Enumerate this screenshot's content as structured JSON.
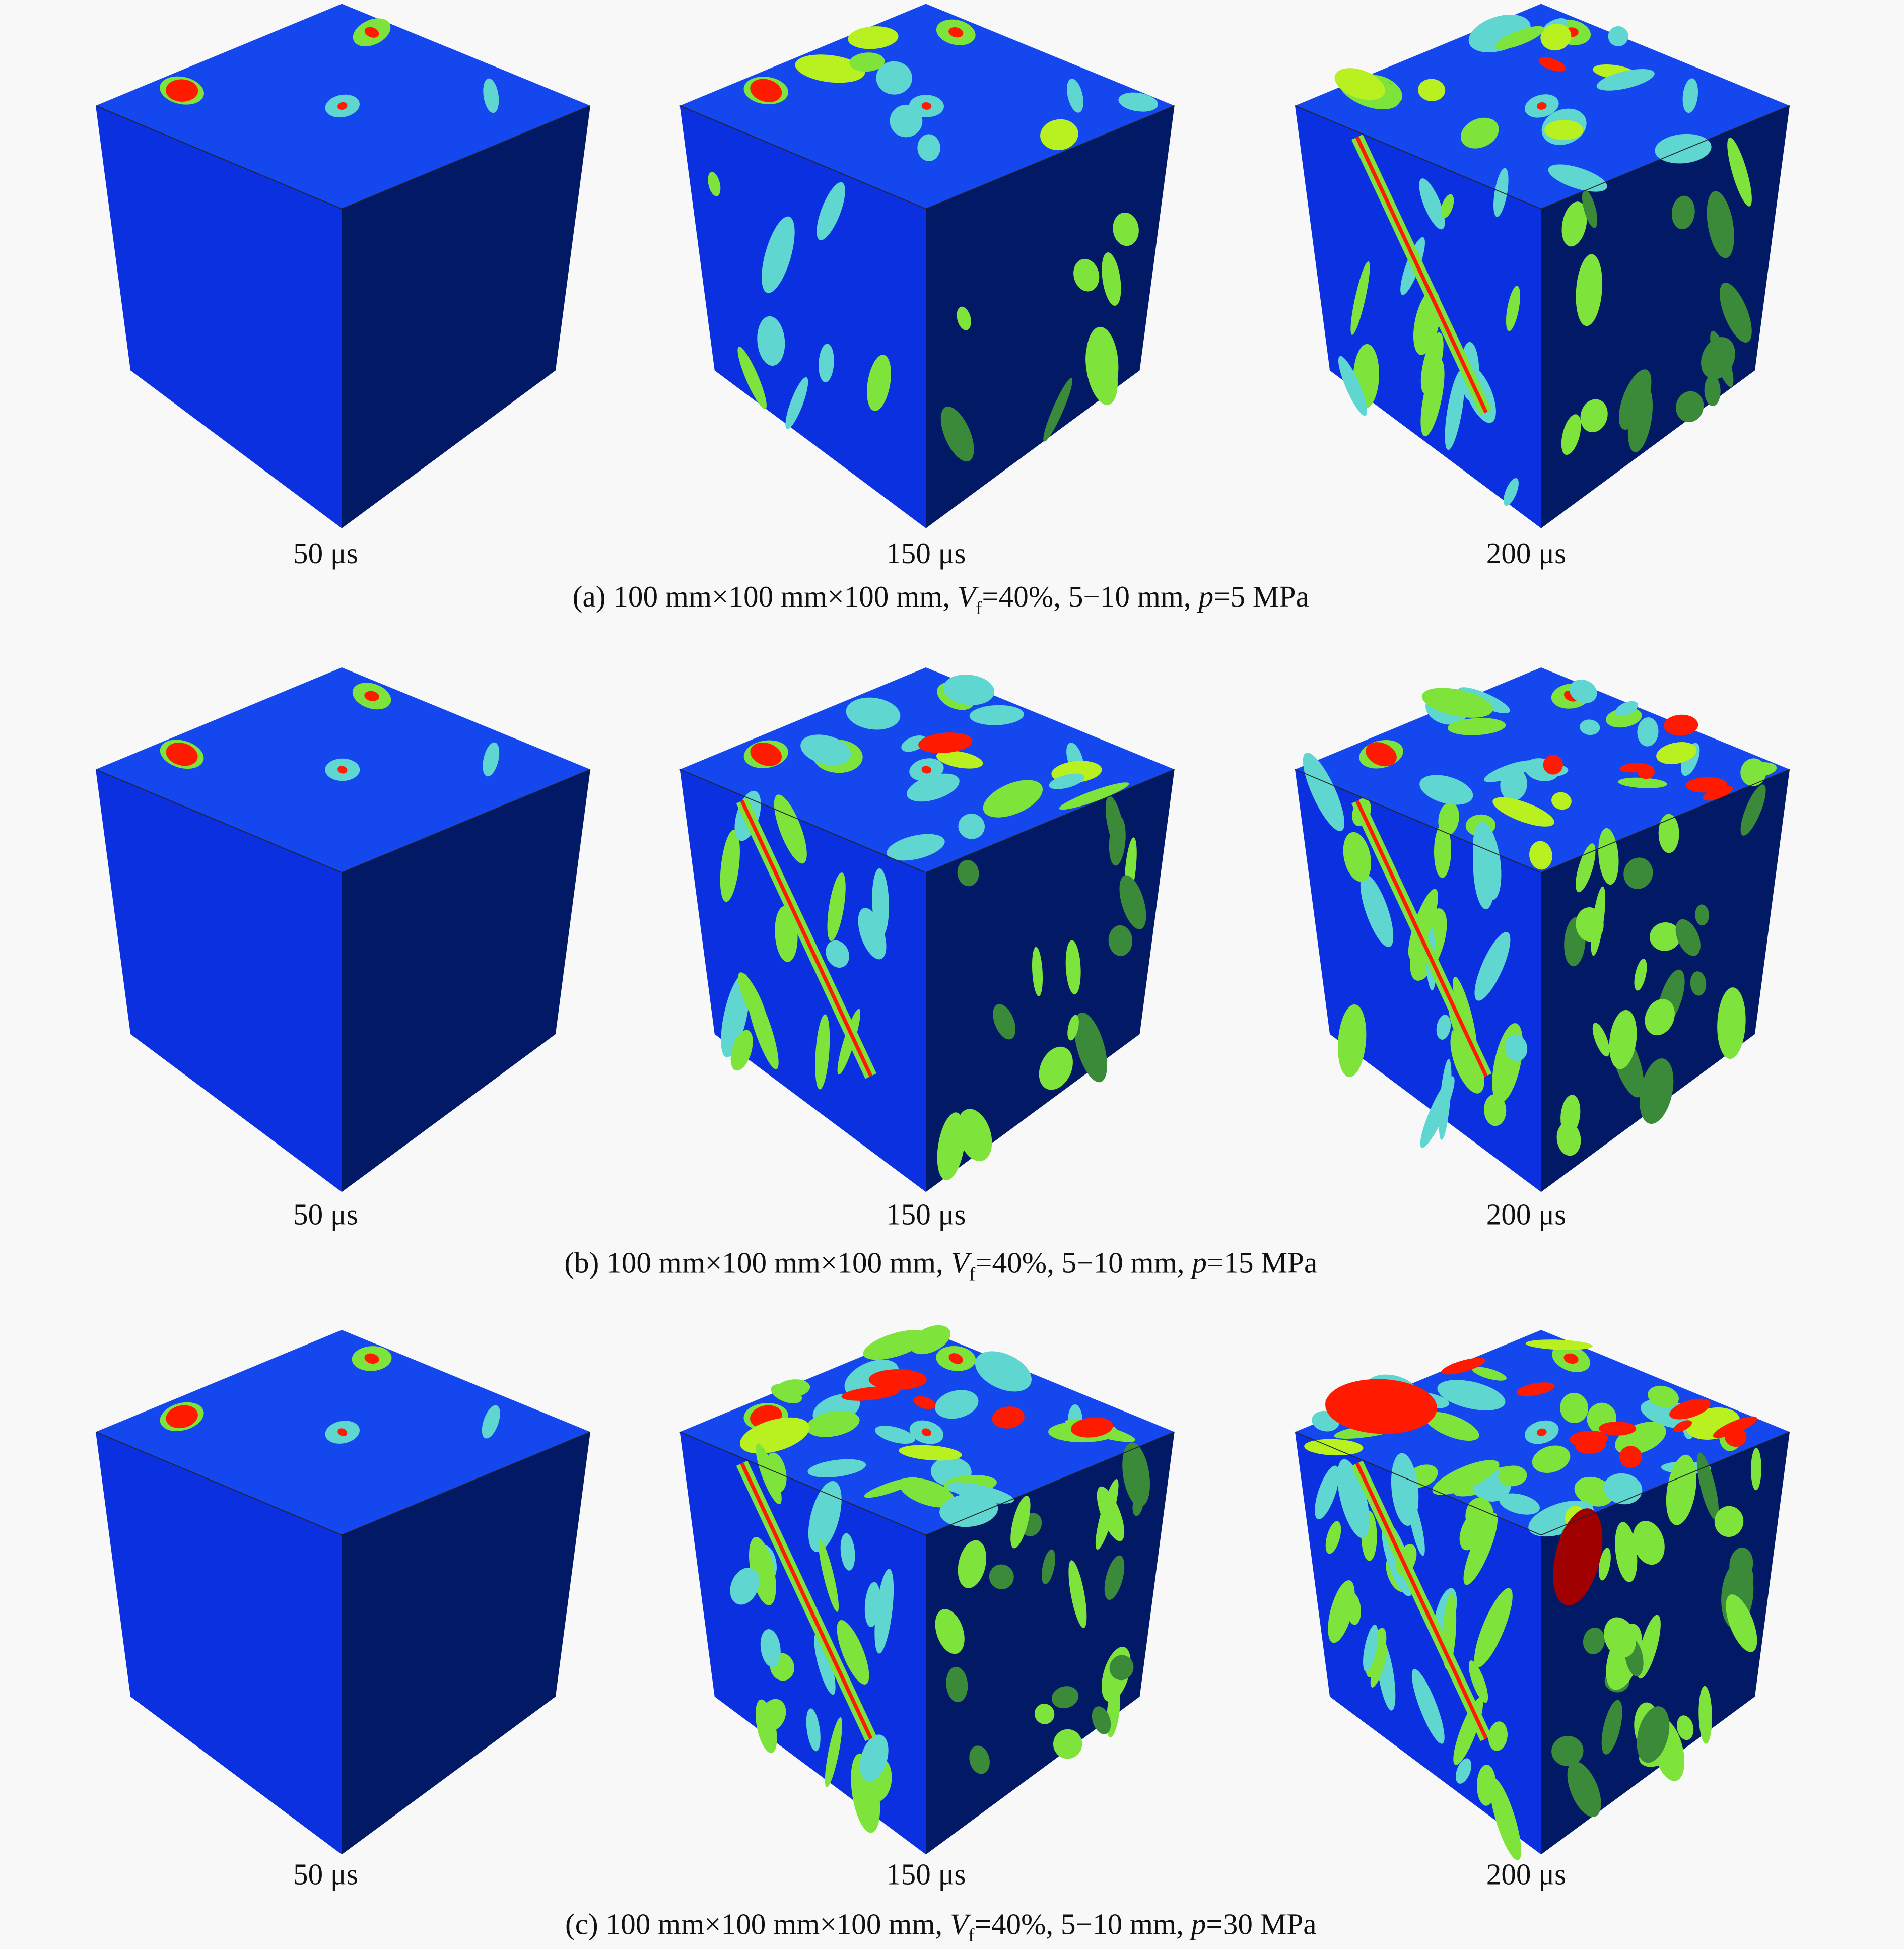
{
  "colors": {
    "background": "#f8f8f8",
    "top_face": "#1448ee",
    "left_face": "#0a30e0",
    "right_face": "#021a66",
    "low": "#0a30e0",
    "cyan": "#5fd6d0",
    "green": "#7ee33a",
    "yellow_green": "#b8f020",
    "red": "#ff1a00",
    "dark_red": "#a00000"
  },
  "rows": [
    {
      "times": [
        "50 μs",
        "150 μs",
        "200 μs"
      ],
      "caption": {
        "prefix": "(a) 100 mm×100 mm×100 mm, ",
        "v": "V",
        "sub": "f",
        "mid": "=40%, 5−10 mm, ",
        "p": "p",
        "suffix": "=5 MPa"
      }
    },
    {
      "times": [
        "50 μs",
        "150 μs",
        "200 μs"
      ],
      "caption": {
        "prefix": "(b) 100 mm×100 mm×100 mm, ",
        "v": "V",
        "sub": "f",
        "mid": "=40%, 5−10 mm, ",
        "p": "p",
        "suffix": "=15 MPa"
      }
    },
    {
      "times": [
        "50 μs",
        "150 μs",
        "200 μs"
      ],
      "caption": {
        "prefix": "(c) 100 mm×100 mm×100 mm, ",
        "v": "V",
        "sub": "f",
        "mid": "=40%, 5−10 mm, ",
        "p": "p",
        "suffix": "=30 MPa"
      }
    }
  ]
}
